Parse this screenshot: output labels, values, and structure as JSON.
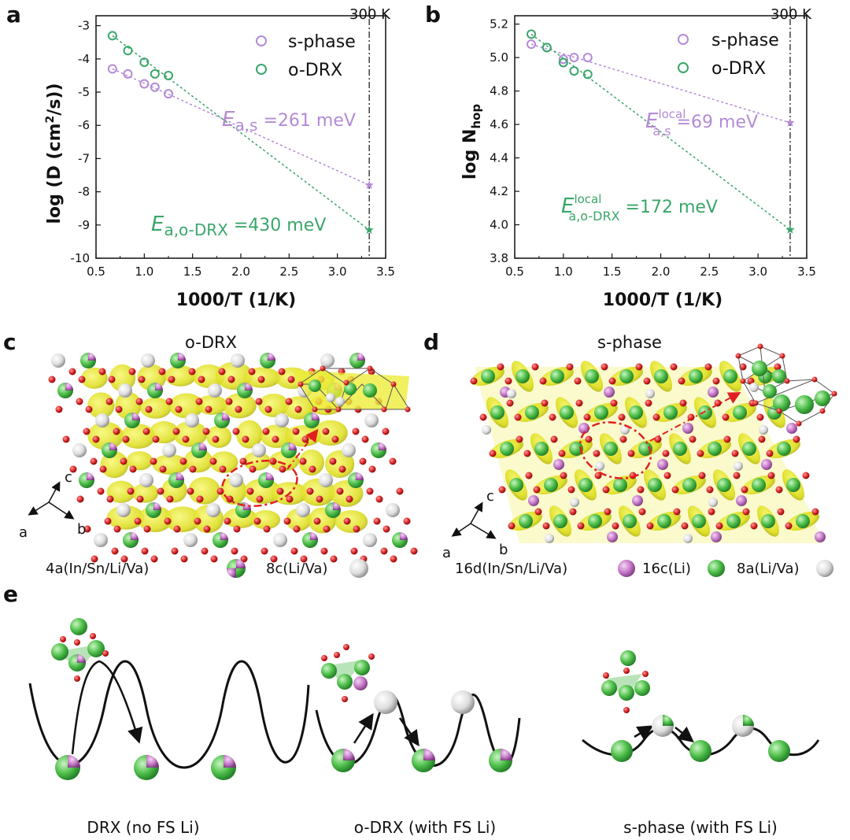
{
  "panels": {
    "a": "a",
    "b": "b",
    "c": "c",
    "d": "d",
    "e": "e"
  },
  "colors": {
    "s_phase": "#b48ad6",
    "o_drx": "#3aa66a",
    "iso": "#e6e61a",
    "oxygen": "#d62020",
    "green_atom": "#5ec95a",
    "pink_atom": "#c77ac9"
  },
  "chart_data": [
    {
      "type": "scatter",
      "panel": "a",
      "xlabel": "1000/T (1/K)",
      "ylabel": "log (D (cm²/s))",
      "xlim": [
        0.5,
        3.5
      ],
      "ylim": [
        -10,
        -2.7
      ],
      "xticks": [
        "0.5",
        "1.0",
        "1.5",
        "2.0",
        "2.5",
        "3.0",
        "3.5"
      ],
      "yticks": [
        "-3",
        "-4",
        "-5",
        "-6",
        "-7",
        "-8",
        "-9",
        "-10"
      ],
      "temp_marker": "300 K",
      "legend": [
        "s-phase",
        "o-DRX"
      ],
      "series": [
        {
          "name": "s-phase",
          "x": [
            0.67,
            0.83,
            1.0,
            1.11,
            1.25
          ],
          "y": [
            -4.3,
            -4.45,
            -4.75,
            -4.85,
            -5.05
          ],
          "extrapolated": {
            "x": 3.33,
            "y": -7.8
          }
        },
        {
          "name": "o-DRX",
          "x": [
            0.67,
            0.83,
            1.0,
            1.11,
            1.25
          ],
          "y": [
            -3.3,
            -3.75,
            -4.1,
            -4.45,
            -4.5
          ],
          "extrapolated": {
            "x": 3.33,
            "y": -9.15
          }
        }
      ],
      "annotations": {
        "s": {
          "E": "E",
          "sub": "a,s",
          "val": " =261 meV"
        },
        "o": {
          "E": "E",
          "sub": "a,o-DRX",
          "val": " =430 meV"
        }
      }
    },
    {
      "type": "scatter",
      "panel": "b",
      "xlabel": "1000/T (1/K)",
      "ylabel_main": "log N",
      "ylabel_sub": "hop",
      "xlim": [
        0.5,
        3.5
      ],
      "ylim": [
        3.8,
        5.25
      ],
      "xticks": [
        "0.5",
        "1.0",
        "1.5",
        "2.0",
        "2.5",
        "3.0",
        "3.5"
      ],
      "yticks": [
        "3.8",
        "4.0",
        "4.2",
        "4.4",
        "4.6",
        "4.8",
        "5.0",
        "5.2"
      ],
      "temp_marker": "300 K",
      "legend": [
        "s-phase",
        "o-DRX"
      ],
      "series": [
        {
          "name": "s-phase",
          "x": [
            0.67,
            0.83,
            1.0,
            1.11,
            1.25
          ],
          "y": [
            5.08,
            5.06,
            4.99,
            5.0,
            5.0
          ],
          "extrapolated": {
            "x": 3.33,
            "y": 4.61
          }
        },
        {
          "name": "o-DRX",
          "x": [
            0.67,
            0.83,
            1.0,
            1.11,
            1.25
          ],
          "y": [
            5.14,
            5.06,
            4.97,
            4.92,
            4.9
          ],
          "extrapolated": {
            "x": 3.33,
            "y": 3.97
          }
        }
      ],
      "annotations": {
        "s": {
          "E": "E",
          "sup": "local",
          "sub": "a,s",
          "val": " =69 meV"
        },
        "o": {
          "E": "E",
          "sup": "local",
          "sub": "a,o-DRX",
          "val": " =172 meV"
        }
      }
    }
  ],
  "structures": {
    "c": {
      "title": "o-DRX",
      "axes": {
        "c": "c",
        "a": "a",
        "b": "b"
      },
      "key": [
        {
          "label": "4a(In/Sn/Li/Va)",
          "icon": "mixed-atom-icon"
        },
        {
          "label": "8c(Li/Va)",
          "icon": "white-atom-icon"
        }
      ]
    },
    "d": {
      "title": "s-phase",
      "axes": {
        "c": "c",
        "a": "a",
        "b": "b"
      },
      "key": [
        {
          "label": "16d(In/Sn/Li/Va)",
          "icon": "pink-atom-icon"
        },
        {
          "label": "16c(Li)",
          "icon": "green-atom-icon"
        },
        {
          "label": "8a(Li/Va)",
          "icon": "white-atom-icon"
        }
      ]
    }
  },
  "energy_landscapes": [
    {
      "caption": "DRX (no FS Li)"
    },
    {
      "caption": "o-DRX (with FS Li)"
    },
    {
      "caption": "s-phase (with FS Li)"
    }
  ]
}
